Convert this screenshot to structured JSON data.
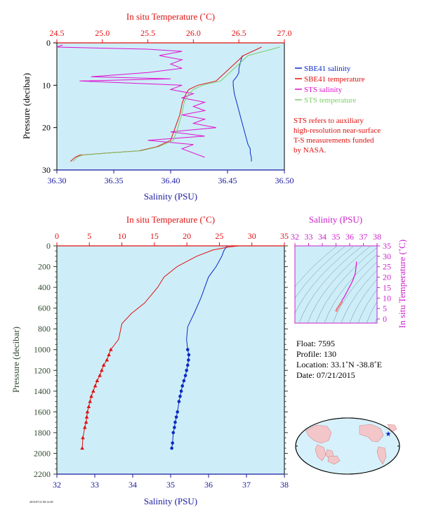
{
  "colors": {
    "panel_bg": "#cdeef8",
    "salinity": "#0b2ac4",
    "temperature": "#e01010",
    "sts_salinity": "#e010d0",
    "sts_temperature": "#7dcc6a",
    "ts_axis": "#cc22cc",
    "pressure_axis": "#2e4a2e",
    "salinity_axis": "#1a1aa0"
  },
  "top_panel": {
    "top_axis_title": "In situ Temperature (˚C)",
    "bottom_axis_title": "Salinity (PSU)",
    "left_axis_title": "Pressure (decibar)",
    "legend": [
      {
        "label": "SBE41 salinity",
        "color": "#0b2ac4"
      },
      {
        "label": "SBE41 temperature",
        "color": "#e01010"
      },
      {
        "label": "STS salinity",
        "color": "#e010d0"
      },
      {
        "label": "STS temperature",
        "color": "#7dcc6a"
      }
    ],
    "note": [
      "STS refers to auxiliary",
      "high-resolution near-surface",
      "T-S measurements funded",
      "by NASA."
    ]
  },
  "bottom_panel": {
    "top_axis_title": "In situ Temperature (˚C)",
    "bottom_axis_title": "Salinity (PSU)",
    "left_axis_title": "Pressure (decibar)"
  },
  "ts_panel": {
    "top_axis_title": "Salinity (PSU)",
    "right_axis_title": "In situ Temperature (˚C)"
  },
  "info": {
    "float": "Float:  7595",
    "profile": "Profile:  130",
    "location": "Location:  33.1˚N  -38.8˚E",
    "date": "Date:  07/21/2015"
  },
  "footer": "2015/07/21 09:12:00",
  "chart_data": [
    {
      "type": "line",
      "title": "",
      "y": {
        "label": "Pressure (decibar)",
        "lim": [
          30,
          0
        ],
        "ticks": [
          0,
          10,
          20,
          30
        ]
      },
      "x_bottom": {
        "label": "Salinity (PSU)",
        "lim": [
          36.3,
          36.5
        ],
        "ticks": [
          36.3,
          36.35,
          36.4,
          36.45,
          36.5
        ]
      },
      "x_top": {
        "label": "In situ Temperature (˚C)",
        "lim": [
          24.5,
          27.0
        ],
        "ticks": [
          24.5,
          25.0,
          25.5,
          26.0,
          26.5,
          27.0
        ]
      },
      "series": [
        {
          "name": "SBE41 salinity",
          "axis": "bottom",
          "x": [
            36.463,
            36.462,
            36.461,
            36.46,
            36.46,
            36.458,
            36.455,
            36.455,
            36.456,
            36.458,
            36.46,
            36.462,
            36.464,
            36.466,
            36.468,
            36.47,
            36.47,
            36.471,
            36.471
          ],
          "y": [
            3,
            4,
            5,
            6,
            7,
            8,
            9,
            10,
            12,
            14,
            16,
            18,
            20,
            22,
            24,
            25,
            26,
            27,
            28
          ]
        },
        {
          "name": "SBE41 temperature",
          "axis": "top",
          "x": [
            26.75,
            26.55,
            26.45,
            26.35,
            26.25,
            26.05,
            25.95,
            25.92,
            25.88,
            25.85,
            25.8,
            25.75,
            25.6,
            25.4,
            25.05,
            24.75,
            24.7,
            24.65
          ],
          "y": [
            1,
            3,
            5,
            7,
            9,
            10,
            11,
            12,
            14,
            17,
            20,
            23,
            24.5,
            25.5,
            26,
            26.5,
            27,
            28
          ]
        },
        {
          "name": "STS salinity",
          "axis": "bottom",
          "x": [
            36.305,
            36.3,
            36.38,
            36.41,
            36.39,
            36.41,
            36.4,
            36.41,
            36.38,
            36.33,
            36.4,
            36.32,
            36.41,
            36.4,
            36.42,
            36.41,
            36.43,
            36.42,
            36.43,
            36.41,
            36.43,
            36.42,
            36.44,
            36.4,
            36.43,
            36.38,
            36.42,
            36.41,
            36.43
          ],
          "y": [
            0.5,
            1,
            1.5,
            2,
            3,
            4,
            5,
            6,
            7,
            8,
            8.5,
            9,
            10,
            11,
            12,
            13,
            14,
            15,
            16,
            17,
            18,
            19,
            20,
            21,
            22,
            23,
            24,
            25,
            27
          ]
        },
        {
          "name": "STS temperature",
          "axis": "top",
          "x": [
            26.95,
            26.6,
            26.5,
            26.4,
            26.3,
            26.1,
            26.0,
            25.95,
            25.9,
            25.87,
            25.83,
            25.78,
            25.62,
            25.42,
            25.07,
            24.78,
            24.72,
            24.68
          ],
          "y": [
            1,
            3,
            5,
            7,
            9,
            10,
            11,
            12,
            14,
            17,
            20,
            23,
            24.5,
            25.5,
            26,
            26.5,
            27,
            28
          ]
        }
      ]
    },
    {
      "type": "line",
      "title": "",
      "y": {
        "label": "Pressure (decibar)",
        "lim": [
          2200,
          0
        ],
        "ticks": [
          0,
          200,
          400,
          600,
          800,
          1000,
          1200,
          1400,
          1600,
          1800,
          2000,
          2200
        ]
      },
      "x_bottom": {
        "label": "Salinity (PSU)",
        "lim": [
          32,
          38
        ],
        "ticks": [
          32,
          33,
          34,
          35,
          36,
          37,
          38
        ]
      },
      "x_top": {
        "label": "In situ Temperature (˚C)",
        "lim": [
          0,
          35
        ],
        "ticks": [
          0,
          5,
          10,
          15,
          20,
          25,
          30,
          35
        ]
      },
      "series": [
        {
          "name": "salinity",
          "axis": "bottom",
          "x": [
            36.5,
            36.45,
            36.4,
            36.35,
            36.2,
            36.0,
            35.9,
            35.8,
            35.62,
            35.45,
            35.42,
            35.45,
            35.48,
            35.47,
            35.45,
            35.42,
            35.39,
            35.35,
            35.31,
            35.28,
            35.25,
            35.22,
            35.18,
            35.15,
            35.12,
            35.1,
            35.07,
            35.05,
            35.03
          ],
          "y": [
            0,
            20,
            50,
            100,
            200,
            300,
            400,
            500,
            650,
            780,
            900,
            1000,
            1050,
            1100,
            1150,
            1200,
            1250,
            1300,
            1350,
            1400,
            1450,
            1500,
            1600,
            1650,
            1700,
            1750,
            1800,
            1900,
            1950
          ],
          "markers_from": 11
        },
        {
          "name": "temperature",
          "axis": "top",
          "x": [
            28.0,
            26.5,
            24.0,
            21.5,
            18.5,
            16.5,
            15.5,
            13.5,
            11.5,
            10.0,
            9.5,
            8.3,
            8.0,
            7.7,
            7.2,
            6.9,
            6.6,
            6.2,
            5.9,
            5.6,
            5.3,
            5.1,
            4.9,
            4.7,
            4.6,
            4.5,
            4.3,
            4.0,
            3.9
          ],
          "y": [
            0,
            10,
            40,
            100,
            200,
            300,
            400,
            550,
            650,
            750,
            900,
            1000,
            1050,
            1100,
            1150,
            1200,
            1250,
            1300,
            1350,
            1400,
            1450,
            1500,
            1550,
            1600,
            1650,
            1700,
            1750,
            1850,
            1950
          ],
          "markers_from": 11
        }
      ]
    },
    {
      "type": "line",
      "title": "",
      "x": {
        "label": "Salinity (PSU)",
        "lim": [
          32,
          38
        ],
        "ticks": [
          32,
          33,
          34,
          35,
          36,
          37,
          38
        ]
      },
      "y": {
        "label": "In situ Temperature (˚C)",
        "lim": [
          -2,
          35
        ],
        "ticks": [
          0,
          5,
          10,
          15,
          20,
          25,
          30,
          35
        ]
      },
      "series": [
        {
          "name": "T-S",
          "x": [
            36.5,
            36.45,
            36.4,
            36.2,
            36.0,
            35.8,
            35.6,
            35.45,
            35.4,
            35.3,
            35.2,
            35.1,
            35.03
          ],
          "y": [
            27.5,
            24.0,
            21.5,
            18.0,
            15.5,
            13.0,
            10.5,
            9.0,
            8.0,
            7.0,
            6.0,
            5.0,
            4.0
          ]
        }
      ]
    }
  ]
}
